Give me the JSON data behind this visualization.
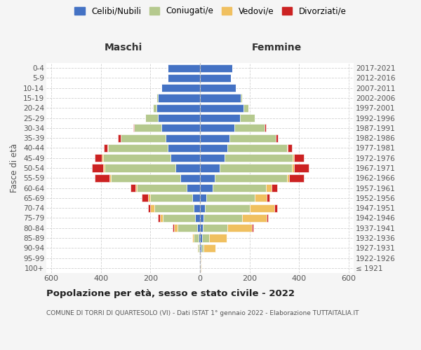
{
  "age_groups": [
    "100+",
    "95-99",
    "90-94",
    "85-89",
    "80-84",
    "75-79",
    "70-74",
    "65-69",
    "60-64",
    "55-59",
    "50-54",
    "45-49",
    "40-44",
    "35-39",
    "30-34",
    "25-29",
    "20-24",
    "15-19",
    "10-14",
    "5-9",
    "0-4"
  ],
  "birth_years": [
    "≤ 1921",
    "1922-1926",
    "1927-1931",
    "1932-1936",
    "1937-1941",
    "1942-1946",
    "1947-1951",
    "1952-1956",
    "1957-1961",
    "1962-1966",
    "1967-1971",
    "1972-1976",
    "1977-1981",
    "1982-1986",
    "1987-1991",
    "1992-1996",
    "1997-2001",
    "2002-2006",
    "2007-2011",
    "2012-2016",
    "2017-2021"
  ],
  "colors": {
    "celibi": "#4472c4",
    "coniugati": "#b5c98e",
    "vedovi": "#f0c060",
    "divorziati": "#cc2222"
  },
  "maschi": {
    "celibi": [
      2,
      2,
      3,
      5,
      10,
      20,
      25,
      30,
      55,
      80,
      100,
      120,
      130,
      140,
      155,
      170,
      175,
      170,
      155,
      130,
      130
    ],
    "coniugati": [
      0,
      0,
      5,
      20,
      80,
      130,
      160,
      170,
      200,
      280,
      285,
      270,
      240,
      180,
      110,
      50,
      15,
      5,
      0,
      0,
      0
    ],
    "vedovi": [
      0,
      0,
      3,
      5,
      15,
      10,
      15,
      10,
      5,
      5,
      5,
      5,
      3,
      0,
      0,
      0,
      0,
      0,
      0,
      0,
      0
    ],
    "divorziati": [
      0,
      0,
      0,
      0,
      5,
      10,
      10,
      25,
      20,
      60,
      45,
      30,
      15,
      10,
      5,
      0,
      0,
      0,
      0,
      0,
      0
    ]
  },
  "femmine": {
    "celibi": [
      2,
      2,
      5,
      8,
      10,
      15,
      20,
      25,
      50,
      60,
      80,
      100,
      110,
      120,
      140,
      160,
      175,
      165,
      145,
      125,
      130
    ],
    "coniugati": [
      0,
      0,
      8,
      30,
      100,
      155,
      180,
      195,
      215,
      290,
      290,
      275,
      240,
      185,
      120,
      60,
      20,
      5,
      0,
      0,
      0
    ],
    "vedovi": [
      3,
      3,
      50,
      70,
      100,
      100,
      100,
      50,
      25,
      10,
      10,
      5,
      5,
      0,
      0,
      0,
      0,
      0,
      0,
      0,
      0
    ],
    "divorziati": [
      0,
      0,
      0,
      0,
      5,
      5,
      10,
      10,
      20,
      60,
      60,
      40,
      15,
      10,
      5,
      0,
      0,
      0,
      0,
      0,
      0
    ]
  },
  "xlim": 620,
  "title": "Popolazione per età, sesso e stato civile - 2022",
  "subtitle": "COMUNE DI TORRI DI QUARTESOLO (VI) - Dati ISTAT 1° gennaio 2022 - Elaborazione TUTTAITALIA.IT",
  "xlabel_left": "Maschi",
  "xlabel_right": "Femmine",
  "ylabel": "Fasce di età",
  "legend_labels": [
    "Celibi/Nubili",
    "Coniugati/e",
    "Vedovi/e",
    "Divorziati/e"
  ],
  "bg_color": "#f5f5f5",
  "plot_bg": "#ffffff",
  "grid_color": "#cccccc"
}
